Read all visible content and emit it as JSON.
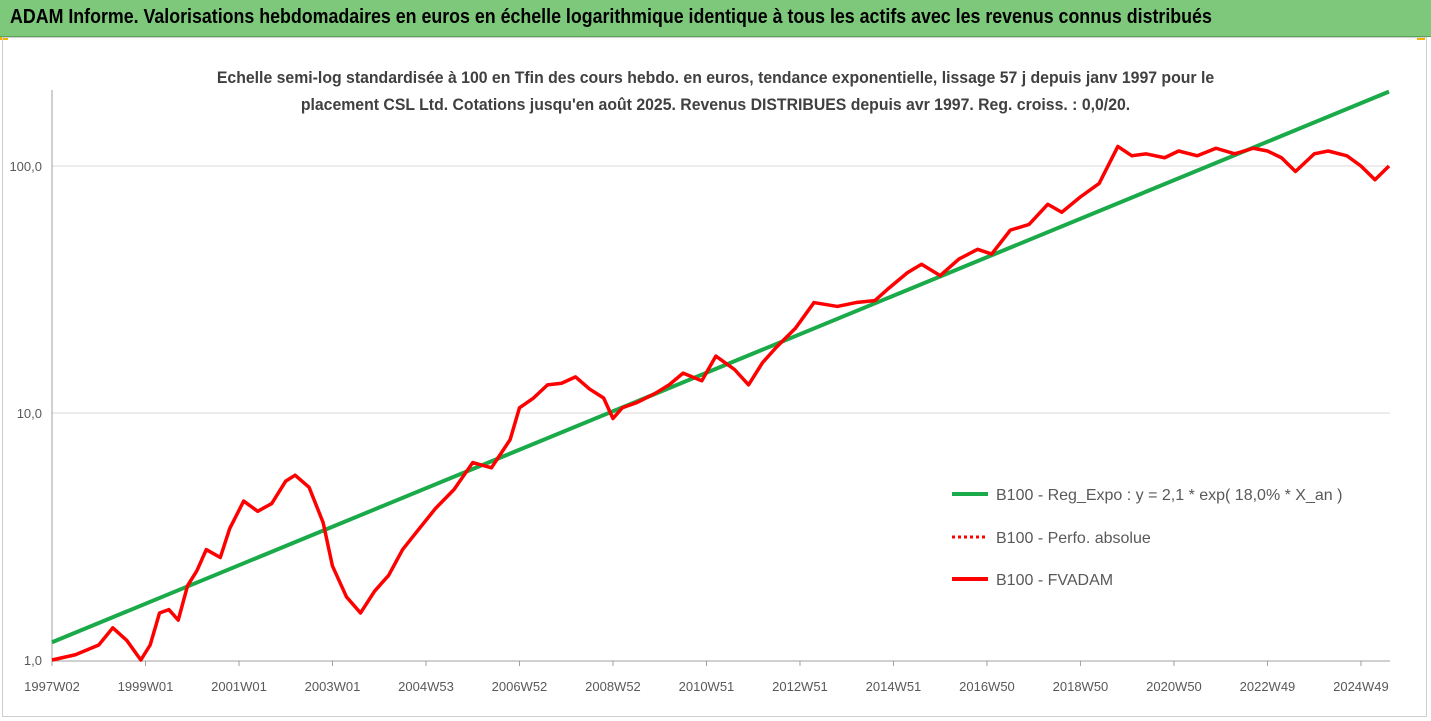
{
  "header": {
    "title": "ADAM Informe. Valorisations hebdomadaires en euros en échelle logarithmique identique à tous les actifs avec les revenus connus distribués",
    "background": "#7dc87a"
  },
  "chart_data": {
    "type": "line",
    "title": "",
    "subtitle_lines": [
      "Echelle semi-log standardisée à 100 en Tfin des cours hebdo. en euros, tendance exponentielle, lissage 57 j depuis janv 1997 pour le",
      "placement CSL Ltd. Cotations jusqu'en août 2025. Revenus DISTRIBUES depuis avr 1997. Reg. croiss. : 0,0/20."
    ],
    "xlabel": "",
    "ylabel": "",
    "y_scale": "log",
    "ylim": [
      1,
      200
    ],
    "y_ticks": [
      {
        "value": 1,
        "label": "1,0"
      },
      {
        "value": 10,
        "label": "10,0"
      },
      {
        "value": 100,
        "label": "100,0"
      }
    ],
    "grid": "horizontal",
    "x_range": [
      1997.0,
      2025.6
    ],
    "x_ticks": [
      {
        "x": 1997.0,
        "label": "1997W02"
      },
      {
        "x": 1999.0,
        "label": "1999W01"
      },
      {
        "x": 2001.0,
        "label": "2001W01"
      },
      {
        "x": 2003.0,
        "label": "2003W01"
      },
      {
        "x": 2005.0,
        "label": "2004W53"
      },
      {
        "x": 2007.0,
        "label": "2006W52"
      },
      {
        "x": 2009.0,
        "label": "2008W52"
      },
      {
        "x": 2011.0,
        "label": "2010W51"
      },
      {
        "x": 2013.0,
        "label": "2012W51"
      },
      {
        "x": 2015.0,
        "label": "2014W51"
      },
      {
        "x": 2017.0,
        "label": "2016W50"
      },
      {
        "x": 2019.0,
        "label": "2018W50"
      },
      {
        "x": 2021.0,
        "label": "2020W50"
      },
      {
        "x": 2023.0,
        "label": "2022W49"
      },
      {
        "x": 2025.0,
        "label": "2024W49"
      }
    ],
    "legend_position": "right",
    "series": [
      {
        "name": "B100 - Reg_Expo : y = 2,1 * exp( 18,0% *  X_an )",
        "style": "solid",
        "color": "#1aaa4a",
        "x": [
          1997.0,
          2025.6
        ],
        "y": [
          1.18,
          200
        ]
      },
      {
        "name": "B100 - Perfo. absolue",
        "style": "dotted",
        "color": "#ff0000",
        "x": [],
        "y": []
      },
      {
        "name": "B100 - FVADAM",
        "style": "solid",
        "color": "#ff0000",
        "x": [
          1997.0,
          1997.5,
          1998.0,
          1998.3,
          1998.6,
          1998.9,
          1999.1,
          1999.3,
          1999.5,
          1999.7,
          1999.9,
          2000.1,
          2000.3,
          2000.6,
          2000.8,
          2001.1,
          2001.4,
          2001.7,
          2002.0,
          2002.2,
          2002.5,
          2002.8,
          2003.0,
          2003.3,
          2003.6,
          2003.9,
          2004.2,
          2004.5,
          2004.8,
          2005.2,
          2005.6,
          2006.0,
          2006.4,
          2006.8,
          2007.0,
          2007.3,
          2007.6,
          2007.9,
          2008.2,
          2008.5,
          2008.8,
          2009.0,
          2009.2,
          2009.5,
          2009.9,
          2010.2,
          2010.5,
          2010.9,
          2011.2,
          2011.6,
          2011.9,
          2012.2,
          2012.5,
          2012.9,
          2013.3,
          2013.8,
          2014.2,
          2014.6,
          2014.9,
          2015.3,
          2015.6,
          2016.0,
          2016.4,
          2016.8,
          2017.1,
          2017.5,
          2017.9,
          2018.3,
          2018.6,
          2019.0,
          2019.4,
          2019.8,
          2020.1,
          2020.4,
          2020.8,
          2021.1,
          2021.5,
          2021.9,
          2022.3,
          2022.7,
          2023.0,
          2023.3,
          2023.6,
          2024.0,
          2024.3,
          2024.7,
          2025.0,
          2025.3,
          2025.6
        ],
        "y": [
          1.0,
          1.05,
          1.15,
          1.35,
          1.2,
          1.0,
          1.15,
          1.55,
          1.6,
          1.45,
          2.0,
          2.3,
          2.8,
          2.6,
          3.4,
          4.4,
          4.0,
          4.3,
          5.3,
          5.6,
          5.0,
          3.6,
          2.4,
          1.8,
          1.55,
          1.9,
          2.2,
          2.8,
          3.3,
          4.1,
          4.9,
          6.3,
          6.0,
          7.8,
          10.5,
          11.5,
          13.0,
          13.2,
          14.0,
          12.5,
          11.5,
          9.5,
          10.5,
          11.0,
          12.0,
          13.0,
          14.5,
          13.5,
          17.0,
          15.0,
          13.0,
          16.0,
          18.5,
          22.0,
          28.0,
          27.0,
          28.0,
          28.5,
          32.0,
          37.0,
          40.0,
          36.0,
          42.0,
          46.0,
          44.0,
          55.0,
          58.0,
          70.0,
          65.0,
          75.0,
          85.0,
          120.0,
          110.0,
          112.0,
          108.0,
          115.0,
          110.0,
          118.0,
          112.0,
          118.0,
          115.0,
          108.0,
          95.0,
          112.0,
          115.0,
          110.0,
          100.0,
          88.0,
          100.0
        ]
      }
    ]
  }
}
